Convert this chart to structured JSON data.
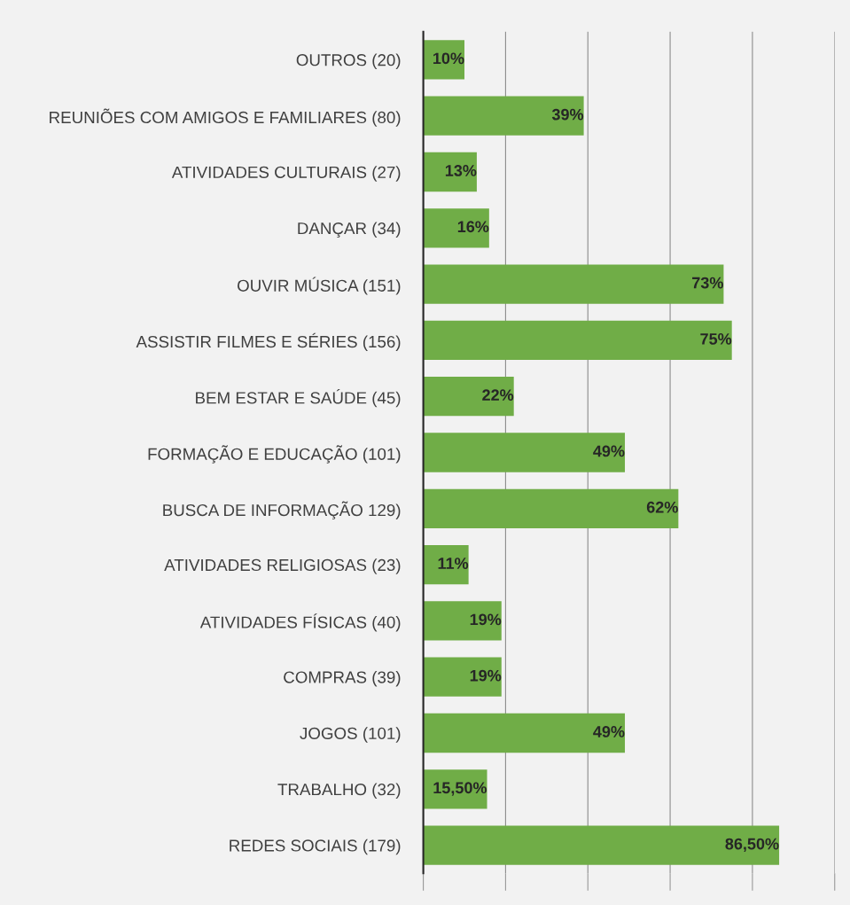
{
  "chart_data": {
    "type": "bar",
    "orientation": "horizontal",
    "categories": [
      "OUTROS (20)",
      "REUNIÕES COM AMIGOS E FAMILIARES (80)",
      "ATIVIDADES CULTURAIS (27)",
      "DANÇAR (34)",
      "OUVIR MÚSICA (151)",
      "ASSISTIR FILMES E SÉRIES (156)",
      "BEM ESTAR E SAÚDE (45)",
      "FORMAÇÃO E EDUCAÇÃO (101)",
      "BUSCA DE INFORMAÇÃO 129)",
      "ATIVIDADES RELIGIOSAS (23)",
      "ATIVIDADES FÍSICAS (40)",
      "COMPRAS (39)",
      "JOGOS (101)",
      "TRABALHO (32)",
      "REDES SOCIAIS (179)"
    ],
    "values": [
      10,
      39,
      13,
      16,
      73,
      75,
      22,
      49,
      62,
      11,
      19,
      19,
      49,
      15.5,
      86.5
    ],
    "value_labels": [
      "10%",
      "39%",
      "13%",
      "16%",
      "73%",
      "75%",
      "22%",
      "49%",
      "62%",
      "11%",
      "19%",
      "19%",
      "49%",
      "15,50%",
      "86,50%"
    ],
    "color": "#70ad47",
    "xlim": [
      0,
      100
    ],
    "xticks": [
      {
        "value": 0,
        "label": null
      },
      {
        "value": 20,
        "label": null
      },
      {
        "value": 40,
        "label": null
      },
      {
        "value": 60,
        "label": null
      },
      {
        "value": 80,
        "label": null
      },
      {
        "value": 100,
        "label": null
      }
    ],
    "grid": "x",
    "tick_labels": "y"
  }
}
